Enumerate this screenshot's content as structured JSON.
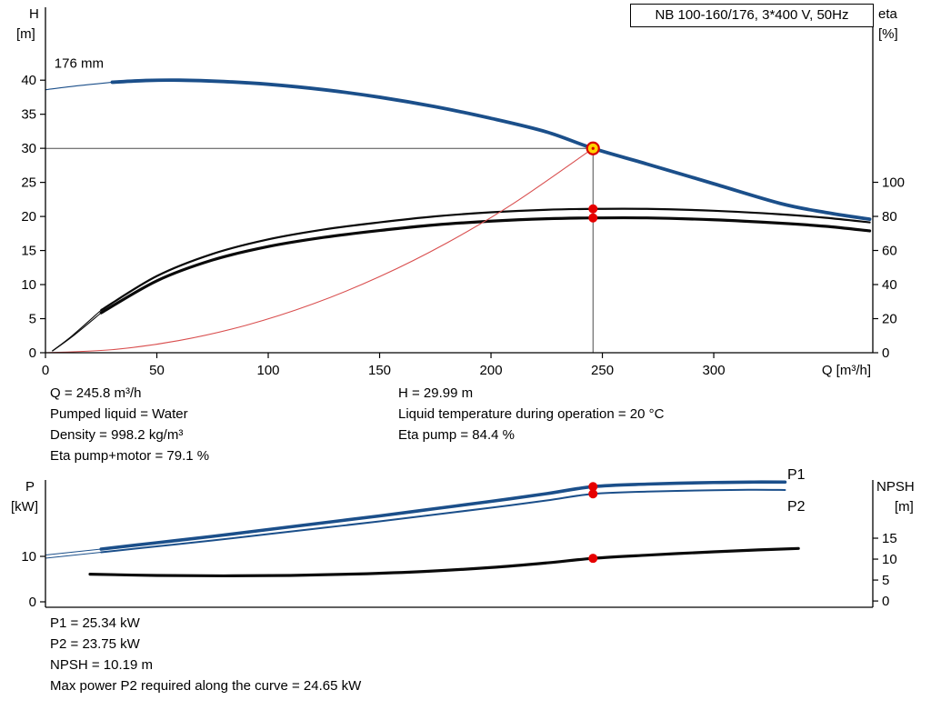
{
  "title_box": "NB 100-160/176, 3*400 V, 50Hz",
  "colors": {
    "curve_blue": "#1b4f8a",
    "curve_black": "#0a0a0a",
    "system_red": "#d94f4f",
    "dot_red": "#e60000",
    "duty_fill": "#ffd200",
    "duty_ring": "#d80000",
    "crosshair": "#4d4d4d",
    "axis": "#000000"
  },
  "info_top": {
    "left": [
      "Q = 245.8 m³/h",
      "Pumped liquid = Water",
      "Density = 998.2 kg/m³",
      "Eta pump+motor = 79.1 %"
    ],
    "right": [
      "H = 29.99 m",
      "Liquid temperature during operation = 20 °C",
      "Eta pump = 84.4 %"
    ]
  },
  "info_bottom": [
    "P1 = 25.34 kW",
    "P2 = 23.75 kW",
    "NPSH = 10.19 m",
    "Max power P2 required along the curve = 24.65 kW"
  ],
  "chart_data": [
    {
      "type": "line",
      "name": "qh-eta-chart",
      "x_axis": {
        "label": "Q [m³/h]",
        "min": 0,
        "max": 371.4,
        "ticks": [
          0,
          50,
          100,
          150,
          200,
          250,
          300
        ]
      },
      "y_left": {
        "label": "H",
        "unit": "[m]",
        "min": 0,
        "max": 50.7,
        "ticks": [
          0,
          5,
          10,
          15,
          20,
          25,
          30,
          35,
          40
        ]
      },
      "y_right": {
        "label": "eta",
        "unit": "[%]",
        "min": 0,
        "max": 202.7,
        "ticks": [
          0,
          20,
          40,
          60,
          80,
          100
        ]
      },
      "annotations": [
        {
          "text": "176 mm",
          "q": 4,
          "v": 41.8,
          "axis": "left"
        }
      ],
      "crosshair": {
        "q": 245.8,
        "v": 29.99
      },
      "duty_point": {
        "q": 245.8,
        "v": 29.99,
        "axis": "left"
      },
      "dots": [
        {
          "q": 245.8,
          "v": 84.4,
          "axis": "right"
        },
        {
          "q": 245.8,
          "v": 79.1,
          "axis": "right"
        }
      ],
      "series": [
        {
          "name": "head-curve-176mm",
          "axis": "left",
          "color": "curve_blue",
          "width": 3.8,
          "thin_until": 25,
          "points": [
            [
              0,
              38.6
            ],
            [
              15,
              39.2
            ],
            [
              30,
              39.7
            ],
            [
              45,
              39.95
            ],
            [
              60,
              40.0
            ],
            [
              80,
              39.8
            ],
            [
              100,
              39.4
            ],
            [
              125,
              38.6
            ],
            [
              150,
              37.5
            ],
            [
              175,
              36.1
            ],
            [
              200,
              34.4
            ],
            [
              225,
              32.4
            ],
            [
              245.8,
              29.99
            ],
            [
              270,
              27.7
            ],
            [
              300,
              24.8
            ],
            [
              330,
              21.9
            ],
            [
              350,
              20.6
            ],
            [
              370,
              19.6
            ]
          ]
        },
        {
          "name": "eta-pump-curve",
          "axis": "right",
          "color": "curve_black",
          "width": 2.2,
          "thin_until": 25,
          "points": [
            [
              3,
              1
            ],
            [
              12,
              10
            ],
            [
              25,
              25
            ],
            [
              50,
              45
            ],
            [
              75,
              58
            ],
            [
              100,
              66.5
            ],
            [
              125,
              72.3
            ],
            [
              150,
              76.5
            ],
            [
              175,
              80
            ],
            [
              200,
              82.4
            ],
            [
              225,
              83.9
            ],
            [
              245.8,
              84.4
            ],
            [
              270,
              84.4
            ],
            [
              300,
              83.3
            ],
            [
              330,
              81.2
            ],
            [
              350,
              79.2
            ],
            [
              370,
              76.5
            ]
          ]
        },
        {
          "name": "eta-pump-motor-curve",
          "axis": "right",
          "color": "curve_black",
          "width": 3.2,
          "thin_until": 25,
          "points": [
            [
              3,
              0.9
            ],
            [
              12,
              9.4
            ],
            [
              25,
              23.4
            ],
            [
              50,
              42.2
            ],
            [
              75,
              54.4
            ],
            [
              100,
              62.3
            ],
            [
              125,
              67.7
            ],
            [
              150,
              71.7
            ],
            [
              175,
              75.0
            ],
            [
              200,
              77.2
            ],
            [
              225,
              78.6
            ],
            [
              245.8,
              79.1
            ],
            [
              270,
              79.1
            ],
            [
              300,
              78.0
            ],
            [
              330,
              76.0
            ],
            [
              350,
              74.2
            ],
            [
              370,
              71.5
            ]
          ]
        },
        {
          "name": "system-curve",
          "axis": "left",
          "color": "system_red",
          "width": 1.1,
          "points": [
            [
              0,
              0
            ],
            [
              30,
              0.45
            ],
            [
              60,
              1.79
            ],
            [
              90,
              4.02
            ],
            [
              120,
              7.15
            ],
            [
              150,
              11.17
            ],
            [
              180,
              16.08
            ],
            [
              210,
              21.89
            ],
            [
              245.8,
              29.99
            ]
          ]
        }
      ]
    },
    {
      "type": "line",
      "name": "power-npsh-chart",
      "x_axis": {
        "label": "",
        "min": 0,
        "max": 371.4,
        "ticks": []
      },
      "y_left": {
        "label": "P",
        "unit": "[kW]",
        "min": -1.2,
        "max": 26.8,
        "ticks": [
          0,
          10
        ]
      },
      "y_right": {
        "label": "NPSH",
        "unit": "[m]",
        "min": -1.5,
        "max": 28.9,
        "ticks": [
          0,
          5,
          10,
          15
        ]
      },
      "dots": [
        {
          "q": 245.8,
          "v": 25.34,
          "axis": "left"
        },
        {
          "q": 245.8,
          "v": 23.75,
          "axis": "left"
        },
        {
          "q": 245.8,
          "v": 10.19,
          "axis": "right"
        }
      ],
      "series": [
        {
          "name": "p1-curve",
          "end_label": "P1",
          "axis": "left",
          "color": "curve_blue",
          "width": 3.6,
          "thin_until": 25,
          "points": [
            [
              0,
              10.3
            ],
            [
              25,
              11.6
            ],
            [
              50,
              13.0
            ],
            [
              75,
              14.4
            ],
            [
              100,
              15.9
            ],
            [
              125,
              17.4
            ],
            [
              150,
              18.9
            ],
            [
              175,
              20.5
            ],
            [
              200,
              22.1
            ],
            [
              225,
              23.8
            ],
            [
              245.8,
              25.34
            ],
            [
              270,
              25.9
            ],
            [
              300,
              26.25
            ],
            [
              318,
              26.35
            ],
            [
              332,
              26.35
            ]
          ]
        },
        {
          "name": "p2-curve",
          "end_label": "P2",
          "axis": "left",
          "color": "curve_blue",
          "width": 2.0,
          "thin_until": 25,
          "points": [
            [
              0,
              9.6
            ],
            [
              25,
              10.9
            ],
            [
              50,
              12.2
            ],
            [
              75,
              13.5
            ],
            [
              100,
              14.9
            ],
            [
              125,
              16.3
            ],
            [
              150,
              17.7
            ],
            [
              175,
              19.2
            ],
            [
              200,
              20.7
            ],
            [
              225,
              22.3
            ],
            [
              245.8,
              23.75
            ],
            [
              270,
              24.25
            ],
            [
              300,
              24.55
            ],
            [
              318,
              24.65
            ],
            [
              332,
              24.6
            ]
          ]
        },
        {
          "name": "npsh-curve",
          "axis": "right",
          "color": "curve_black",
          "width": 3.2,
          "points": [
            [
              20,
              6.4
            ],
            [
              50,
              6.1
            ],
            [
              80,
              6.0
            ],
            [
              110,
              6.1
            ],
            [
              140,
              6.45
            ],
            [
              170,
              7.05
            ],
            [
              200,
              8.0
            ],
            [
              225,
              9.1
            ],
            [
              245.8,
              10.19
            ],
            [
              270,
              10.95
            ],
            [
              300,
              11.75
            ],
            [
              320,
              12.2
            ],
            [
              338,
              12.55
            ]
          ]
        }
      ]
    }
  ]
}
